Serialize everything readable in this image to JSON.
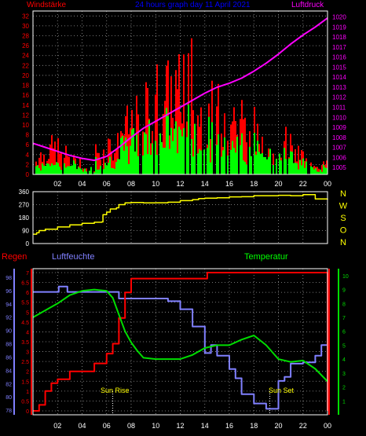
{
  "header": {
    "left": "Windstärke",
    "center": "24 hours graph day  11 April 2021",
    "right": "Luftdruck"
  },
  "labels": {
    "regen": "Regen",
    "luftfeuchte": "Luftfeuchte",
    "temperatur": "Temperatur",
    "sun_rise": "Sun Rise",
    "sun_set": "Sun Set"
  },
  "colors": {
    "wind_gust": "#ff0000",
    "wind_avg": "#00ff00",
    "pressure": "#ff00ff",
    "direction": "#ffff00",
    "humidity": "#8080ff",
    "temperature": "#00dd00",
    "rain": "#ff0000",
    "header_left": "#ff0000",
    "header_center": "#0000ff",
    "header_right": "#ff00ff",
    "compass": "#ffff00"
  },
  "x_ticks": [
    "02",
    "04",
    "06",
    "08",
    "10",
    "12",
    "14",
    "16",
    "18",
    "20",
    "22",
    "00"
  ],
  "chart_data": [
    {
      "type": "bar",
      "title": "24 hours graph day  11 April 2021",
      "left_axis": {
        "label": "Windstärke",
        "ticks": [
          0,
          2,
          4,
          6,
          8,
          10,
          12,
          14,
          16,
          18,
          20,
          22,
          24,
          26,
          28,
          30,
          32
        ],
        "range": [
          0,
          33
        ]
      },
      "right_axis": {
        "label": "Luftdruck",
        "ticks": [
          1005,
          1006,
          1007,
          1008,
          1009,
          1010,
          1011,
          1012,
          1013,
          1014,
          1015,
          1016,
          1017,
          1018,
          1019,
          1020
        ],
        "range": [
          1004.3,
          1020.6
        ]
      },
      "x_range": [
        0,
        24
      ],
      "series": [
        {
          "name": "Windstärke",
          "kind": "wind-bars",
          "gust_max": [
            6,
            8,
            6,
            4,
            2,
            7,
            9,
            14,
            16,
            20,
            24,
            25,
            30,
            20,
            19,
            19,
            18,
            14,
            11,
            12,
            10,
            6,
            4,
            3
          ],
          "avg_max": [
            3,
            4,
            3,
            3,
            2,
            4,
            5,
            8,
            11,
            12,
            14,
            14,
            15,
            13,
            12,
            12,
            11,
            10,
            9,
            9,
            7,
            5,
            3,
            2
          ]
        },
        {
          "name": "Luftdruck",
          "kind": "line",
          "x": [
            0,
            1,
            2,
            3,
            4,
            5,
            6,
            7,
            8,
            9,
            10,
            11,
            12,
            13,
            14,
            15,
            16,
            17,
            18,
            19,
            20,
            21,
            22,
            23,
            24
          ],
          "y": [
            1007.4,
            1007.0,
            1006.6,
            1006.2,
            1005.9,
            1005.7,
            1006.1,
            1007.0,
            1008.0,
            1008.9,
            1009.6,
            1010.3,
            1011.0,
            1011.7,
            1012.4,
            1013.0,
            1013.4,
            1013.9,
            1014.6,
            1015.4,
            1016.3,
            1017.3,
            1018.2,
            1019.0,
            1019.9
          ]
        }
      ]
    },
    {
      "type": "line",
      "left_axis": {
        "ticks": [
          0,
          90,
          180,
          270,
          360
        ],
        "range": [
          0,
          360
        ]
      },
      "compass": [
        "N",
        "W",
        "S",
        "O",
        "N"
      ],
      "x_range": [
        0,
        24
      ],
      "series": [
        {
          "name": "Windrichtung",
          "x": [
            0,
            0.3,
            0.5,
            1,
            2,
            3,
            4,
            5,
            5.6,
            5.7,
            6,
            6.3,
            6.8,
            7,
            7.5,
            8,
            9,
            10,
            11,
            12,
            13,
            13.5,
            14,
            15,
            16,
            17,
            18,
            19,
            20,
            21,
            22,
            23,
            24
          ],
          "y": [
            65,
            75,
            90,
            100,
            115,
            130,
            140,
            148,
            150,
            200,
            218,
            240,
            248,
            270,
            282,
            285,
            282,
            283,
            287,
            298,
            305,
            312,
            315,
            318,
            324,
            325,
            332,
            332,
            335,
            332,
            340,
            310,
            305
          ]
        }
      ]
    },
    {
      "type": "line",
      "labels": [
        "Regen",
        "Luftfeuchte",
        "Temperatur"
      ],
      "humidity_axis": {
        "ticks": [
          78,
          80,
          82,
          84,
          86,
          88,
          90,
          92,
          94,
          96,
          98
        ],
        "range": [
          77.3,
          99.3
        ]
      },
      "rain_axis": {
        "ticks": [
          0,
          0.5,
          1,
          1.5,
          2,
          2.5,
          3,
          3.5,
          4,
          4.5,
          5,
          5.5,
          6,
          6.5,
          7
        ],
        "range": [
          -0.2,
          7.2
        ]
      },
      "temp_axis": {
        "ticks": [
          1,
          2,
          3,
          4,
          5,
          6,
          7,
          8,
          9,
          10
        ],
        "range": [
          0,
          10.5
        ]
      },
      "x_range": [
        0,
        24
      ],
      "sunrise": 6.5,
      "sunset": 19.3,
      "series": [
        {
          "name": "Luftfeuchte",
          "x": [
            0,
            2,
            2.1,
            2.7,
            2.8,
            5,
            6,
            7,
            8,
            9,
            10,
            11,
            12,
            13,
            14,
            14.5,
            15,
            16,
            16.5,
            17,
            18,
            19,
            20,
            20.5,
            21,
            22,
            23,
            23.5,
            24
          ],
          "y": [
            95.8,
            95.8,
            96.6,
            96.6,
            95.8,
            95.8,
            95.8,
            94.8,
            94.8,
            94.8,
            94.8,
            94.4,
            93.2,
            90.6,
            86.6,
            87.8,
            86.2,
            84.2,
            82.8,
            80.4,
            79,
            78.2,
            82.4,
            83,
            85,
            85.2,
            86.2,
            87.8,
            87
          ]
        },
        {
          "name": "Regen",
          "x": [
            0,
            0.5,
            1,
            1.5,
            2,
            3,
            4,
            5,
            6,
            6.5,
            7,
            7.5,
            8,
            9,
            10,
            11,
            12,
            13,
            14,
            14.2,
            15,
            16,
            17,
            18,
            19,
            20,
            21,
            22,
            23,
            23.9,
            24
          ],
          "y": [
            0,
            0.3,
            1,
            1.4,
            1.6,
            2,
            2,
            2.4,
            2.9,
            3.4,
            4.7,
            6.0,
            6.7,
            6.7,
            6.7,
            6.7,
            6.7,
            6.7,
            6.7,
            7,
            7,
            7,
            7,
            7,
            7,
            7,
            7,
            7,
            7,
            7,
            0
          ]
        },
        {
          "name": "Temperatur",
          "x": [
            0,
            1,
            2,
            3,
            4,
            5,
            6,
            6.5,
            7,
            7.5,
            8,
            8.5,
            9,
            10,
            11,
            12,
            13,
            14,
            15,
            16,
            17,
            18,
            19,
            20,
            21,
            22,
            23,
            24
          ],
          "y": [
            7,
            7.5,
            8,
            8.6,
            8.9,
            9,
            8.9,
            8.4,
            7.2,
            6,
            5.2,
            4.6,
            4.1,
            4.0,
            4.0,
            4.0,
            4.3,
            4.8,
            5.0,
            5.0,
            5.4,
            5.7,
            5.0,
            4.0,
            3.8,
            3.9,
            3.3,
            2.4
          ]
        }
      ]
    }
  ]
}
